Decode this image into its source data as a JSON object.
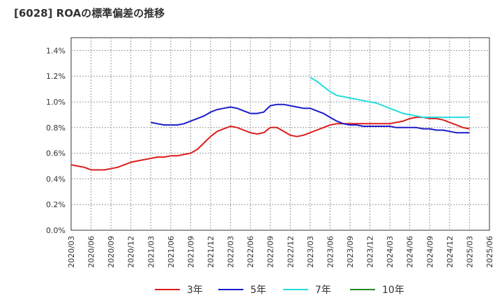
{
  "title": "[6028]  ROAの標準偏差の推移",
  "chart_data": {
    "type": "line",
    "x": [
      "2020/03",
      "2020/06",
      "2020/09",
      "2020/12",
      "2021/03",
      "2021/06",
      "2021/09",
      "2021/12",
      "2022/03",
      "2022/06",
      "2022/09",
      "2022/12",
      "2023/03",
      "2023/06",
      "2023/09",
      "2023/12",
      "2024/03",
      "2024/06",
      "2024/09",
      "2024/12",
      "2025/03",
      "2025/06"
    ],
    "y_ticks": [
      "0.0%",
      "0.2%",
      "0.4%",
      "0.6%",
      "0.8%",
      "1.0%",
      "1.2%",
      "1.4%"
    ],
    "ylim": [
      0,
      1.5
    ],
    "grid": true,
    "legend_position": "bottom",
    "series": [
      {
        "name": "3年",
        "color": "#dd1c1c",
        "points": [
          [
            "2020/03",
            0.51
          ],
          [
            "2020/04",
            0.5
          ],
          [
            "2020/05",
            0.49
          ],
          [
            "2020/06",
            0.47
          ],
          [
            "2020/07",
            0.47
          ],
          [
            "2020/08",
            0.47
          ],
          [
            "2020/09",
            0.48
          ],
          [
            "2020/10",
            0.49
          ],
          [
            "2020/11",
            0.51
          ],
          [
            "2020/12",
            0.53
          ],
          [
            "2021/01",
            0.54
          ],
          [
            "2021/02",
            0.55
          ],
          [
            "2021/03",
            0.56
          ],
          [
            "2021/04",
            0.57
          ],
          [
            "2021/05",
            0.57
          ],
          [
            "2021/06",
            0.58
          ],
          [
            "2021/07",
            0.58
          ],
          [
            "2021/08",
            0.59
          ],
          [
            "2021/09",
            0.6
          ],
          [
            "2021/10",
            0.63
          ],
          [
            "2021/11",
            0.68
          ],
          [
            "2021/12",
            0.73
          ],
          [
            "2022/01",
            0.77
          ],
          [
            "2022/02",
            0.79
          ],
          [
            "2022/03",
            0.81
          ],
          [
            "2022/04",
            0.8
          ],
          [
            "2022/05",
            0.78
          ],
          [
            "2022/06",
            0.76
          ],
          [
            "2022/07",
            0.75
          ],
          [
            "2022/08",
            0.76
          ],
          [
            "2022/09",
            0.8
          ],
          [
            "2022/10",
            0.8
          ],
          [
            "2022/11",
            0.77
          ],
          [
            "2022/12",
            0.74
          ],
          [
            "2023/01",
            0.73
          ],
          [
            "2023/02",
            0.74
          ],
          [
            "2023/03",
            0.76
          ],
          [
            "2023/04",
            0.78
          ],
          [
            "2023/05",
            0.8
          ],
          [
            "2023/06",
            0.82
          ],
          [
            "2023/07",
            0.83
          ],
          [
            "2023/08",
            0.83
          ],
          [
            "2023/09",
            0.83
          ],
          [
            "2023/10",
            0.83
          ],
          [
            "2023/11",
            0.83
          ],
          [
            "2023/12",
            0.83
          ],
          [
            "2024/01",
            0.83
          ],
          [
            "2024/02",
            0.83
          ],
          [
            "2024/03",
            0.83
          ],
          [
            "2024/04",
            0.84
          ],
          [
            "2024/05",
            0.85
          ],
          [
            "2024/06",
            0.87
          ],
          [
            "2024/07",
            0.88
          ],
          [
            "2024/08",
            0.88
          ],
          [
            "2024/09",
            0.87
          ],
          [
            "2024/10",
            0.87
          ],
          [
            "2024/11",
            0.86
          ],
          [
            "2024/12",
            0.84
          ],
          [
            "2025/01",
            0.82
          ],
          [
            "2025/02",
            0.8
          ],
          [
            "2025/03",
            0.79
          ]
        ]
      },
      {
        "name": "5年",
        "color": "#1b1bcc",
        "points": [
          [
            "2021/03",
            0.84
          ],
          [
            "2021/04",
            0.83
          ],
          [
            "2021/05",
            0.82
          ],
          [
            "2021/06",
            0.82
          ],
          [
            "2021/07",
            0.82
          ],
          [
            "2021/08",
            0.83
          ],
          [
            "2021/09",
            0.85
          ],
          [
            "2021/10",
            0.87
          ],
          [
            "2021/11",
            0.89
          ],
          [
            "2021/12",
            0.92
          ],
          [
            "2022/01",
            0.94
          ],
          [
            "2022/02",
            0.95
          ],
          [
            "2022/03",
            0.96
          ],
          [
            "2022/04",
            0.95
          ],
          [
            "2022/05",
            0.93
          ],
          [
            "2022/06",
            0.91
          ],
          [
            "2022/07",
            0.91
          ],
          [
            "2022/08",
            0.92
          ],
          [
            "2022/09",
            0.97
          ],
          [
            "2022/10",
            0.98
          ],
          [
            "2022/11",
            0.98
          ],
          [
            "2022/12",
            0.97
          ],
          [
            "2023/01",
            0.96
          ],
          [
            "2023/02",
            0.95
          ],
          [
            "2023/03",
            0.95
          ],
          [
            "2023/04",
            0.93
          ],
          [
            "2023/05",
            0.91
          ],
          [
            "2023/06",
            0.88
          ],
          [
            "2023/07",
            0.85
          ],
          [
            "2023/08",
            0.83
          ],
          [
            "2023/09",
            0.82
          ],
          [
            "2023/10",
            0.82
          ],
          [
            "2023/11",
            0.81
          ],
          [
            "2023/12",
            0.81
          ],
          [
            "2024/01",
            0.81
          ],
          [
            "2024/02",
            0.81
          ],
          [
            "2024/03",
            0.81
          ],
          [
            "2024/04",
            0.8
          ],
          [
            "2024/05",
            0.8
          ],
          [
            "2024/06",
            0.8
          ],
          [
            "2024/07",
            0.8
          ],
          [
            "2024/08",
            0.79
          ],
          [
            "2024/09",
            0.79
          ],
          [
            "2024/10",
            0.78
          ],
          [
            "2024/11",
            0.78
          ],
          [
            "2024/12",
            0.77
          ],
          [
            "2025/01",
            0.76
          ],
          [
            "2025/02",
            0.76
          ],
          [
            "2025/03",
            0.76
          ]
        ]
      },
      {
        "name": "7年",
        "color": "#22dddd",
        "points": [
          [
            "2023/03",
            1.19
          ],
          [
            "2023/04",
            1.16
          ],
          [
            "2023/05",
            1.12
          ],
          [
            "2023/06",
            1.08
          ],
          [
            "2023/07",
            1.05
          ],
          [
            "2023/08",
            1.04
          ],
          [
            "2023/09",
            1.03
          ],
          [
            "2023/10",
            1.02
          ],
          [
            "2023/11",
            1.01
          ],
          [
            "2023/12",
            1.0
          ],
          [
            "2024/01",
            0.99
          ],
          [
            "2024/02",
            0.97
          ],
          [
            "2024/03",
            0.95
          ],
          [
            "2024/04",
            0.93
          ],
          [
            "2024/05",
            0.91
          ],
          [
            "2024/06",
            0.9
          ],
          [
            "2024/07",
            0.89
          ],
          [
            "2024/08",
            0.88
          ],
          [
            "2024/09",
            0.88
          ],
          [
            "2024/10",
            0.88
          ],
          [
            "2024/11",
            0.88
          ],
          [
            "2024/12",
            0.88
          ],
          [
            "2025/01",
            0.88
          ],
          [
            "2025/02",
            0.88
          ],
          [
            "2025/03",
            0.88
          ]
        ]
      },
      {
        "name": "10年",
        "color": "#228b22",
        "points": []
      }
    ]
  }
}
